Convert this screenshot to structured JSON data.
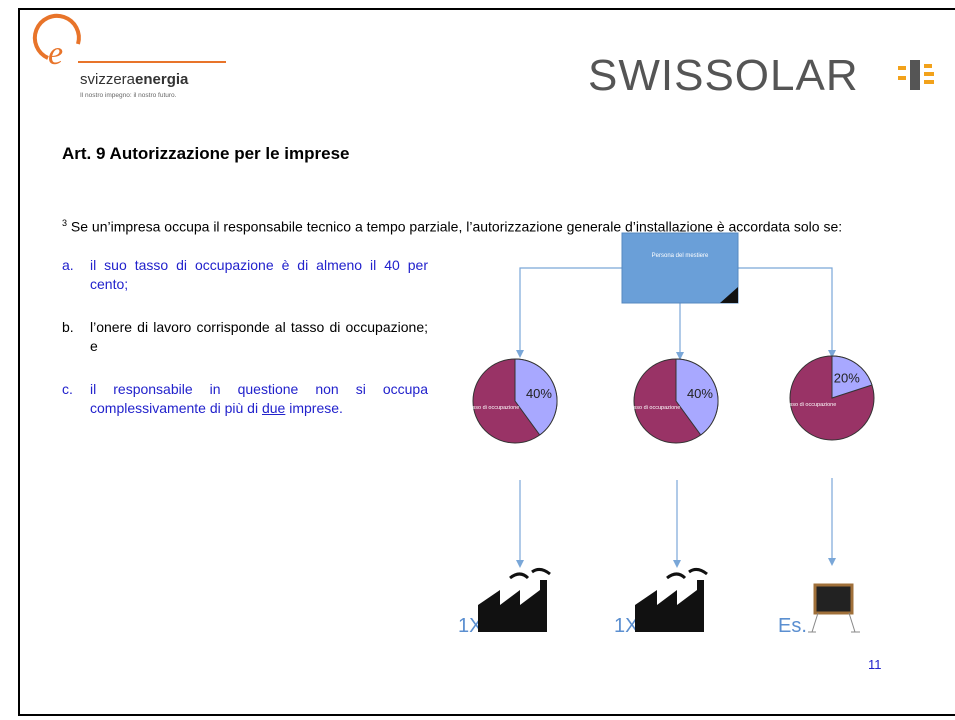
{
  "header": {
    "logo_name_light": "svizzera",
    "logo_name_bold": "energia",
    "logo_tagline": "Il nostro impegno: il nostro futuro.",
    "brand": "SWISSOLAR"
  },
  "title": "Art. 9 Autorizzazione per le imprese",
  "paragraph": {
    "footnote": "3",
    "text": "Se un’impresa occupa il responsabile tecnico a tempo parziale, l’autorizzazione generale d’installazione è accordata solo se:"
  },
  "list": [
    {
      "marker": "a.",
      "text": "il suo tasso di occupazione è di almeno il 40 per cento;"
    },
    {
      "marker": "b.",
      "text": "l’onere di lavoro corrisponde al tasso di occupazione; e"
    },
    {
      "marker": "c.",
      "text_before": "il responsabile in questione non si occupa complessivamente di più di",
      "underlined": "due",
      "text_after": "imprese."
    }
  ],
  "diagram": {
    "box_label": "Persona del mestiere",
    "pies": [
      {
        "label": "Tasso di occupazione",
        "value": 40,
        "value_label": "40%",
        "caption": "1X"
      },
      {
        "label": "Tasso di occupazione",
        "value": 40,
        "value_label": "40%",
        "caption": "1X"
      },
      {
        "label": "Tasso di occupazione",
        "value": 20,
        "value_label": "20%",
        "caption": "Es."
      }
    ]
  },
  "page_number": "11"
}
